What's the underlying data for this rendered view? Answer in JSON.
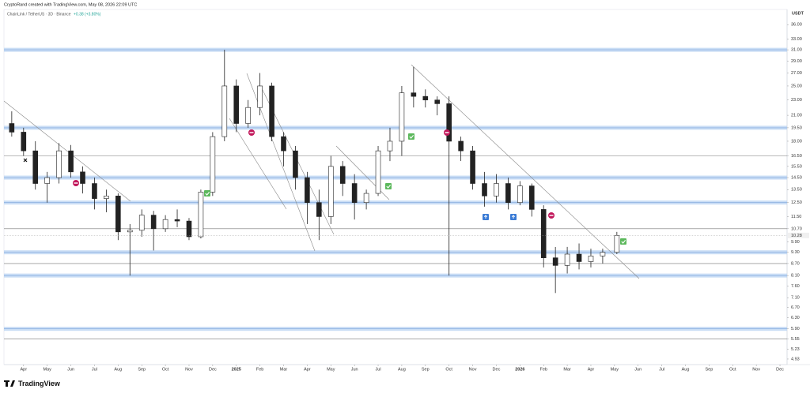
{
  "header": "CryptoRand created with TradingView.com, May 08, 2026 22:09 UTC",
  "brand": "TradingView",
  "chart_data": {
    "type": "candlestick",
    "title": "ChainLink / TetherUS · 3D · Binance",
    "change": "+0.38 (+3.80%)",
    "y_unit": "USDT",
    "log_scale": true,
    "xlim": [
      -0.83,
      32.3
    ],
    "ylim": [
      4.77,
      39.4
    ],
    "xticks": [
      {
        "value": 0,
        "label": "Apr"
      },
      {
        "value": 1,
        "label": "May"
      },
      {
        "value": 2,
        "label": "Jun"
      },
      {
        "value": 3,
        "label": "Jul"
      },
      {
        "value": 4,
        "label": "Aug"
      },
      {
        "value": 5,
        "label": "Sep"
      },
      {
        "value": 6,
        "label": "Oct"
      },
      {
        "value": 7,
        "label": "Nov"
      },
      {
        "value": 8,
        "label": "Dec"
      },
      {
        "value": 9,
        "label": "2025"
      },
      {
        "value": 10,
        "label": "Feb"
      },
      {
        "value": 11,
        "label": "Mar"
      },
      {
        "value": 12,
        "label": "Apr"
      },
      {
        "value": 13,
        "label": "May"
      },
      {
        "value": 14,
        "label": "Jun"
      },
      {
        "value": 15,
        "label": "Jul"
      },
      {
        "value": 16,
        "label": "Aug"
      },
      {
        "value": 17,
        "label": "Sep"
      },
      {
        "value": 18,
        "label": "Oct"
      },
      {
        "value": 19,
        "label": "Nov"
      },
      {
        "value": 20,
        "label": "Dec"
      },
      {
        "value": 21,
        "label": "2026"
      },
      {
        "value": 22,
        "label": "Feb"
      },
      {
        "value": 23,
        "label": "Mar"
      },
      {
        "value": 24,
        "label": "Apr"
      },
      {
        "value": 25,
        "label": "May"
      },
      {
        "value": 26,
        "label": "Jun"
      },
      {
        "value": 27,
        "label": "Jul"
      },
      {
        "value": 28,
        "label": "Aug"
      },
      {
        "value": 29,
        "label": "Sep"
      },
      {
        "value": 30,
        "label": "Oct"
      },
      {
        "value": 31,
        "label": "Nov"
      },
      {
        "value": 32,
        "label": "Dec"
      }
    ],
    "yticks": [
      {
        "value": 36,
        "label": "36.00"
      },
      {
        "value": 33,
        "label": "33.00"
      },
      {
        "value": 31,
        "label": "31.00"
      },
      {
        "value": 29,
        "label": "29.00"
      },
      {
        "value": 27,
        "label": "27.00"
      },
      {
        "value": 25,
        "label": "25.00"
      },
      {
        "value": 23,
        "label": "23.00"
      },
      {
        "value": 21,
        "label": "21.00"
      },
      {
        "value": 19.5,
        "label": "19.50"
      },
      {
        "value": 18,
        "label": "18.00"
      },
      {
        "value": 16.5,
        "label": "16.50"
      },
      {
        "value": 15.5,
        "label": "15.50"
      },
      {
        "value": 14.5,
        "label": "14.50"
      },
      {
        "value": 13.5,
        "label": "13.50"
      },
      {
        "value": 12.5,
        "label": "12.50"
      },
      {
        "value": 11.5,
        "label": "11.50"
      },
      {
        "value": 10.7,
        "label": "10.70"
      },
      {
        "value": 9.9,
        "label": "9.90"
      },
      {
        "value": 9.3,
        "label": "9.30"
      },
      {
        "value": 8.7,
        "label": "8.70"
      },
      {
        "value": 8.1,
        "label": "8.10"
      },
      {
        "value": 7.6,
        "label": "7.60"
      },
      {
        "value": 7.1,
        "label": "7.10"
      },
      {
        "value": 6.7,
        "label": "6.70"
      },
      {
        "value": 6.3,
        "label": "6.30"
      },
      {
        "value": 5.9,
        "label": "5.90"
      },
      {
        "value": 5.55,
        "label": "5.55"
      },
      {
        "value": 5.23,
        "label": "5.23"
      },
      {
        "value": 4.93,
        "label": "4.93"
      }
    ],
    "last_price": {
      "value": 10.28,
      "label": "10.28"
    },
    "support_levels": [
      31,
      19.5,
      14.5,
      12.5,
      9.3,
      8.1,
      5.9
    ],
    "support_color": "#bcd4f2",
    "line_levels": [
      16.5,
      10.7,
      8.7,
      5.55
    ],
    "up_color": "#ffffff",
    "down_color": "#222222",
    "x": [
      -0.5,
      0,
      0.5,
      1,
      1.5,
      2,
      2.5,
      3,
      3.5,
      4,
      4.5,
      5,
      5.5,
      6,
      6.5,
      7,
      7.5,
      8,
      8.5,
      9,
      9.5,
      10,
      10.5,
      11,
      11.5,
      12,
      12.5,
      13,
      13.5,
      14,
      14.5,
      15,
      15.5,
      16,
      16.5,
      17,
      17.5,
      18,
      18.5,
      19,
      19.5,
      20,
      20.5,
      21,
      21.5,
      22,
      22.5,
      23,
      23.5,
      24,
      24.5,
      25.1
    ],
    "open": [
      20,
      19,
      17,
      14,
      14.5,
      17,
      15,
      14,
      12.8,
      13,
      10.5,
      10.6,
      11.6,
      10.7,
      11.3,
      11.2,
      10.2,
      13.3,
      18.5,
      25,
      20,
      22,
      25,
      18.5,
      17,
      14.5,
      12.5,
      11.5,
      15.5,
      14,
      12.5,
      13.2,
      17,
      18,
      24,
      23.5,
      23,
      22.5,
      18,
      17,
      14,
      13,
      14,
      12.5,
      13.8,
      12,
      9,
      8.6,
      9.2,
      8.8,
      9.1,
      9.3
    ],
    "high": [
      21.5,
      19.5,
      18,
      15,
      17.8,
      17.6,
      15.5,
      14.5,
      13.5,
      13.2,
      11,
      12,
      11.9,
      11.6,
      12,
      11.4,
      13.5,
      19,
      31,
      26,
      23,
      27,
      25.5,
      19,
      17.5,
      15,
      13.5,
      16.5,
      16,
      14.8,
      13.5,
      17.5,
      19.5,
      25,
      28,
      24.5,
      23.5,
      23.5,
      18.5,
      17.5,
      15,
      14.8,
      14.5,
      14.2,
      14,
      12.3,
      9.6,
      9.6,
      9.8,
      9.5,
      9.5,
      10.5
    ],
    "low": [
      18.5,
      16.5,
      13.5,
      12.5,
      14,
      14.5,
      13.2,
      12,
      11.8,
      10,
      8.1,
      10.2,
      9.4,
      10.5,
      10.8,
      10,
      10.1,
      13,
      18,
      19,
      19.5,
      21,
      18,
      15.5,
      13.5,
      11,
      10,
      11,
      13,
      11.3,
      12,
      13,
      16,
      16.5,
      22,
      22,
      21,
      8.1,
      16,
      13.5,
      12.2,
      12.5,
      12,
      12.3,
      11.5,
      8.5,
      7.3,
      8.2,
      8.4,
      8.5,
      8.7,
      9.2
    ],
    "close": [
      19,
      17,
      14,
      14.5,
      17,
      15,
      14,
      12.8,
      13,
      10.5,
      10.6,
      11.6,
      10.7,
      11.3,
      11.2,
      10.2,
      13.3,
      18.5,
      25,
      20,
      22,
      25,
      18.5,
      17,
      14.5,
      12.5,
      11.5,
      15.5,
      14,
      12.5,
      13.2,
      17,
      18,
      24,
      23.5,
      23,
      22.5,
      18,
      17,
      14,
      13,
      14,
      12.5,
      13.8,
      12,
      9,
      8.6,
      9.2,
      8.8,
      9.1,
      9.3,
      10.28
    ]
  }
}
